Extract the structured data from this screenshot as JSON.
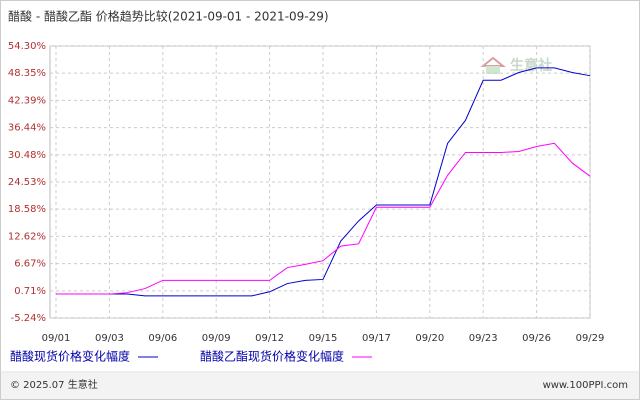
{
  "chart_data": {
    "type": "line",
    "title": "醋酸 - 醋酸乙酯 价格趋势比较(2021-09-01 - 2021-09-29)",
    "watermark": "生意社",
    "categories": [
      "09/01",
      null,
      null,
      "09/03",
      null,
      null,
      "09/06",
      null,
      null,
      "09/09",
      null,
      null,
      "09/12",
      null,
      null,
      "09/15",
      null,
      null,
      "09/17",
      null,
      null,
      "09/20",
      null,
      null,
      "09/23",
      null,
      null,
      "09/26",
      null,
      null,
      "09/29"
    ],
    "series": [
      {
        "name": "醋酸现货价格变化幅度",
        "color": "#0000cc",
        "values": [
          0,
          0,
          0,
          0,
          0,
          -0.4,
          -0.4,
          -0.4,
          -0.4,
          -0.4,
          -0.4,
          -0.4,
          0.5,
          2.3,
          3,
          3.2,
          11.6,
          16,
          19.5,
          19.5,
          19.5,
          19.5,
          33,
          38,
          46.8,
          46.8,
          48.5,
          49.5,
          49.5,
          48.5,
          47.8
        ]
      },
      {
        "name": "醋酸乙酯现货价格变化幅度",
        "color": "#ff00ff",
        "values": [
          0,
          0,
          0,
          0,
          0.3,
          1.2,
          3,
          3,
          3,
          3,
          3,
          3,
          3,
          5.8,
          6.5,
          7.3,
          10.5,
          11,
          19,
          19,
          19,
          19,
          26,
          31,
          31,
          31,
          31.2,
          32.3,
          33,
          28.7,
          25.8
        ]
      }
    ],
    "ylim": [
      -5.24,
      54.3
    ],
    "yticks": [
      {
        "value": -5.24,
        "label": "-5.24%"
      },
      {
        "value": 0.71,
        "label": "0.71%"
      },
      {
        "value": 6.67,
        "label": "6.67%"
      },
      {
        "value": 12.62,
        "label": "12.62%"
      },
      {
        "value": 18.58,
        "label": "18.58%"
      },
      {
        "value": 24.53,
        "label": "24.53%"
      },
      {
        "value": 30.48,
        "label": "30.48%"
      },
      {
        "value": 36.44,
        "label": "36.44%"
      },
      {
        "value": 42.39,
        "label": "42.39%"
      },
      {
        "value": 48.35,
        "label": "48.35%"
      },
      {
        "value": 54.3,
        "label": "54.30%"
      }
    ],
    "grid": true
  },
  "footer": {
    "copyright": "© 2025.07 生意社",
    "site": "www.100PPI.com"
  }
}
